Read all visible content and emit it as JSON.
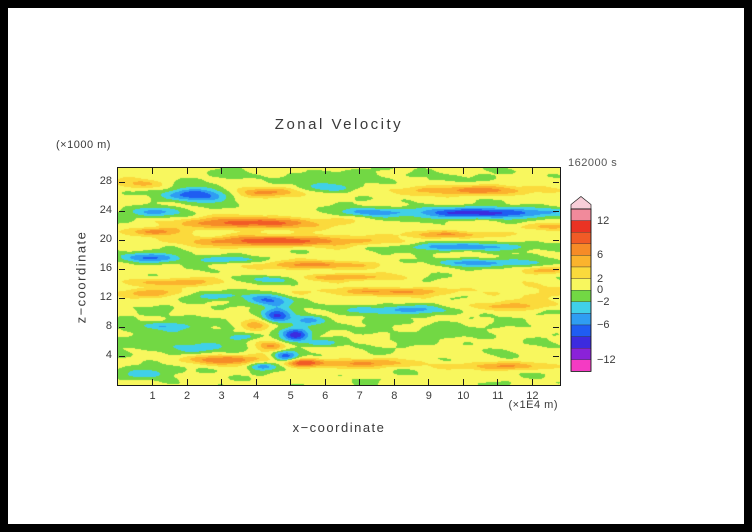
{
  "frame": {
    "border_color": "#000000",
    "background": "#ffffff"
  },
  "chart_data": {
    "type": "heatmap",
    "title": "Zonal Velocity",
    "time_label": "162000 s",
    "xlabel": "x−coordinate",
    "ylabel": "z−coordinate",
    "x_units_label": "(×1E4 m)",
    "y_units_label": "(×1000 m)",
    "xlim": [
      0,
      12.8
    ],
    "zlim": [
      0,
      30
    ],
    "x_ticks": [
      1,
      2,
      3,
      4,
      5,
      6,
      7,
      8,
      9,
      10,
      11,
      12
    ],
    "z_ticks": [
      4,
      8,
      12,
      16,
      20,
      24,
      28
    ],
    "grid": false,
    "legend_position": "right-colorbar",
    "colorbar": {
      "levels_min": -14,
      "levels_max": 14,
      "step": 2,
      "band_colors": [
        "#f43bc3",
        "#8a22d8",
        "#3c2bdf",
        "#1f5df2",
        "#2f9df2",
        "#40d0e8",
        "#72d844",
        "#f8f75e",
        "#fbda3c",
        "#fbb32d",
        "#f68b27",
        "#f15b26",
        "#ea3323",
        "#f18a9b"
      ],
      "over_color": "#f7ced8",
      "labels": [
        {
          "value": 12,
          "text": "12"
        },
        {
          "value": 6,
          "text": "6"
        },
        {
          "value": 2,
          "text": "2"
        },
        {
          "value": 0,
          "text": "0"
        },
        {
          "value": -2,
          "text": "−2"
        },
        {
          "value": -6,
          "text": "−6"
        },
        {
          "value": -12,
          "text": "−12"
        }
      ]
    },
    "field": {
      "description": "Zonal velocity u(x,z) approximated as base + gaussian blobs + sinusoidal texture; blob format [x, z, rx, rz, amplitude] in axis units (x in 1E4 m, z in 1000 m, u in velocity units of the colorbar)",
      "base": 0.5,
      "blobs": [
        [
          2.3,
          26.3,
          0.9,
          0.9,
          -9
        ],
        [
          4.2,
          26.6,
          0.9,
          0.7,
          7
        ],
        [
          6.3,
          27.3,
          0.8,
          0.6,
          -4
        ],
        [
          10.2,
          26.9,
          2.2,
          0.7,
          6
        ],
        [
          0.6,
          27.8,
          0.7,
          0.7,
          4
        ],
        [
          3.9,
          22.4,
          2.0,
          0.8,
          9
        ],
        [
          1.0,
          23.9,
          0.8,
          0.7,
          -5
        ],
        [
          7.3,
          23.9,
          0.9,
          0.6,
          -5
        ],
        [
          10.6,
          23.8,
          2.2,
          0.75,
          -9.5
        ],
        [
          12.5,
          21.9,
          0.8,
          0.5,
          5
        ],
        [
          4.6,
          19.9,
          2.6,
          0.75,
          9
        ],
        [
          1.1,
          21.2,
          0.8,
          0.55,
          6
        ],
        [
          9.8,
          20.8,
          1.6,
          0.5,
          5
        ],
        [
          10.1,
          19.1,
          1.9,
          0.55,
          -6
        ],
        [
          1.0,
          17.6,
          0.8,
          0.7,
          -7
        ],
        [
          3.1,
          17.3,
          1.0,
          0.5,
          -4
        ],
        [
          5.8,
          16.6,
          1.8,
          0.6,
          6
        ],
        [
          10.6,
          16.9,
          1.8,
          0.55,
          -5
        ],
        [
          12.4,
          15.8,
          0.7,
          0.5,
          4
        ],
        [
          1.6,
          14.2,
          1.3,
          0.6,
          5
        ],
        [
          6.6,
          14.9,
          1.4,
          0.5,
          5
        ],
        [
          4.3,
          14.6,
          0.7,
          0.5,
          -4
        ],
        [
          7.8,
          12.9,
          1.8,
          0.6,
          6
        ],
        [
          0.8,
          12.7,
          0.9,
          0.6,
          5
        ],
        [
          2.9,
          12.3,
          0.7,
          0.5,
          -4
        ],
        [
          4.35,
          11.7,
          0.65,
          0.8,
          -7
        ],
        [
          8.1,
          10.4,
          1.6,
          0.6,
          -5
        ],
        [
          11.3,
          10.9,
          1.3,
          0.6,
          4
        ],
        [
          1.3,
          8.2,
          0.6,
          0.5,
          -4
        ],
        [
          4.6,
          9.6,
          0.4,
          1.1,
          -8
        ],
        [
          3.95,
          8.3,
          0.45,
          0.8,
          6
        ],
        [
          5.15,
          7.0,
          0.4,
          1.0,
          -9
        ],
        [
          4.4,
          5.4,
          0.45,
          0.7,
          7
        ],
        [
          4.85,
          3.9,
          0.38,
          0.8,
          -9
        ],
        [
          5.3,
          3.1,
          0.5,
          0.6,
          8
        ],
        [
          4.15,
          2.6,
          0.4,
          0.6,
          -6
        ],
        [
          5.9,
          5.8,
          0.5,
          0.5,
          -4
        ],
        [
          3.6,
          6.7,
          0.4,
          0.5,
          -4
        ],
        [
          5.5,
          9.0,
          0.5,
          0.7,
          -5
        ],
        [
          3.1,
          3.5,
          1.2,
          0.7,
          8
        ],
        [
          6.9,
          3.0,
          1.5,
          0.6,
          6
        ],
        [
          11.1,
          2.6,
          1.6,
          0.55,
          5
        ],
        [
          0.9,
          1.6,
          0.9,
          0.8,
          -3
        ],
        [
          2.4,
          5.2,
          0.8,
          0.7,
          -3
        ],
        [
          1.8,
          6.5,
          2.2,
          3.0,
          -1.6
        ],
        [
          6.5,
          28.7,
          3.5,
          1.0,
          -1.2
        ],
        [
          9.0,
          7.5,
          2.5,
          2.0,
          -1.0
        ],
        [
          12.0,
          13.0,
          1.2,
          1.5,
          2.0
        ]
      ],
      "texture": [
        {
          "amp": 0.7,
          "sx": 1.9,
          "sz": 0.6,
          "cx": 0.3,
          "cz": 2.1
        },
        {
          "amp": 0.5,
          "sx": 3.3,
          "sz": -0.2,
          "cx": 0.0,
          "cz": 1.5
        },
        {
          "amp": 0.35,
          "sx": 5.1,
          "sz": 0.0,
          "cx": 0.7,
          "cz": 3.7
        }
      ]
    }
  }
}
